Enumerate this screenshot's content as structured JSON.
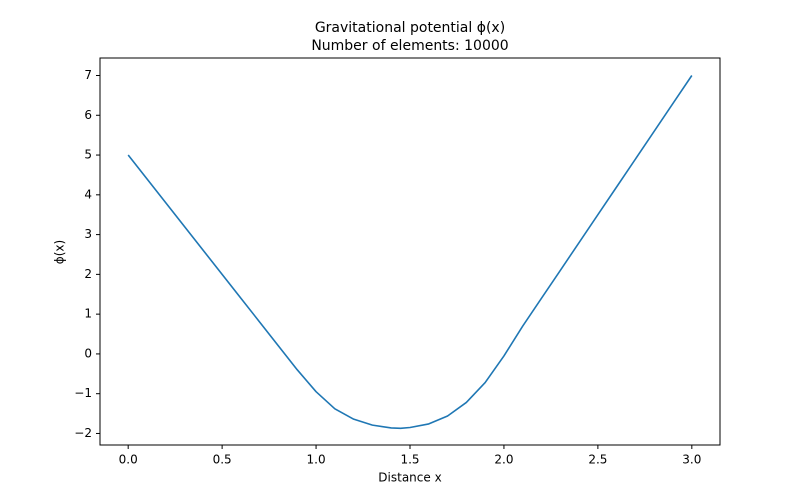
{
  "chart_data": {
    "type": "line",
    "title": "Gravitational potential ϕ(x)",
    "subtitle": "Number of elements: 10000",
    "x_label": "Distance x",
    "y_label": "ϕ(x)",
    "x": [
      0,
      0.1,
      0.2,
      0.3,
      0.4,
      0.5,
      0.6,
      0.7,
      0.8,
      0.9,
      1.0,
      1.1,
      1.2,
      1.3,
      1.4,
      1.45,
      1.5,
      1.6,
      1.7,
      1.8,
      1.9,
      2.0,
      2.1,
      2.2,
      2.3,
      2.4,
      2.5,
      2.6,
      2.7,
      2.8,
      2.9,
      3.0
    ],
    "series": [
      {
        "name": "ϕ(x)",
        "color": "#1f77b4",
        "values": [
          5,
          4.4,
          3.8,
          3.2,
          2.6,
          2.0,
          1.4,
          0.8,
          0.2,
          -0.4,
          -0.95,
          -1.38,
          -1.64,
          -1.79,
          -1.86,
          -1.87,
          -1.85,
          -1.76,
          -1.56,
          -1.22,
          -0.72,
          -0.05,
          0.7,
          1.4,
          2.1,
          2.8,
          3.5,
          4.2,
          4.9,
          5.6,
          6.3,
          7.0
        ]
      }
    ],
    "xlim": [
      -0.15,
      3.15
    ],
    "ylim": [
      -2.29,
      7.44
    ],
    "xticks": [
      {
        "value": 0,
        "label": "0.0"
      },
      {
        "value": 0.5,
        "label": "0.5"
      },
      {
        "value": 1,
        "label": "1.0"
      },
      {
        "value": 1.5,
        "label": "1.5"
      },
      {
        "value": 2,
        "label": "2.0"
      },
      {
        "value": 2.5,
        "label": "2.5"
      },
      {
        "value": 3,
        "label": "3.0"
      }
    ],
    "yticks": [
      {
        "value": -2,
        "label": "−2"
      },
      {
        "value": -1,
        "label": "−1"
      },
      0,
      1,
      2,
      3,
      4,
      5,
      6,
      7
    ],
    "grid": false
  }
}
